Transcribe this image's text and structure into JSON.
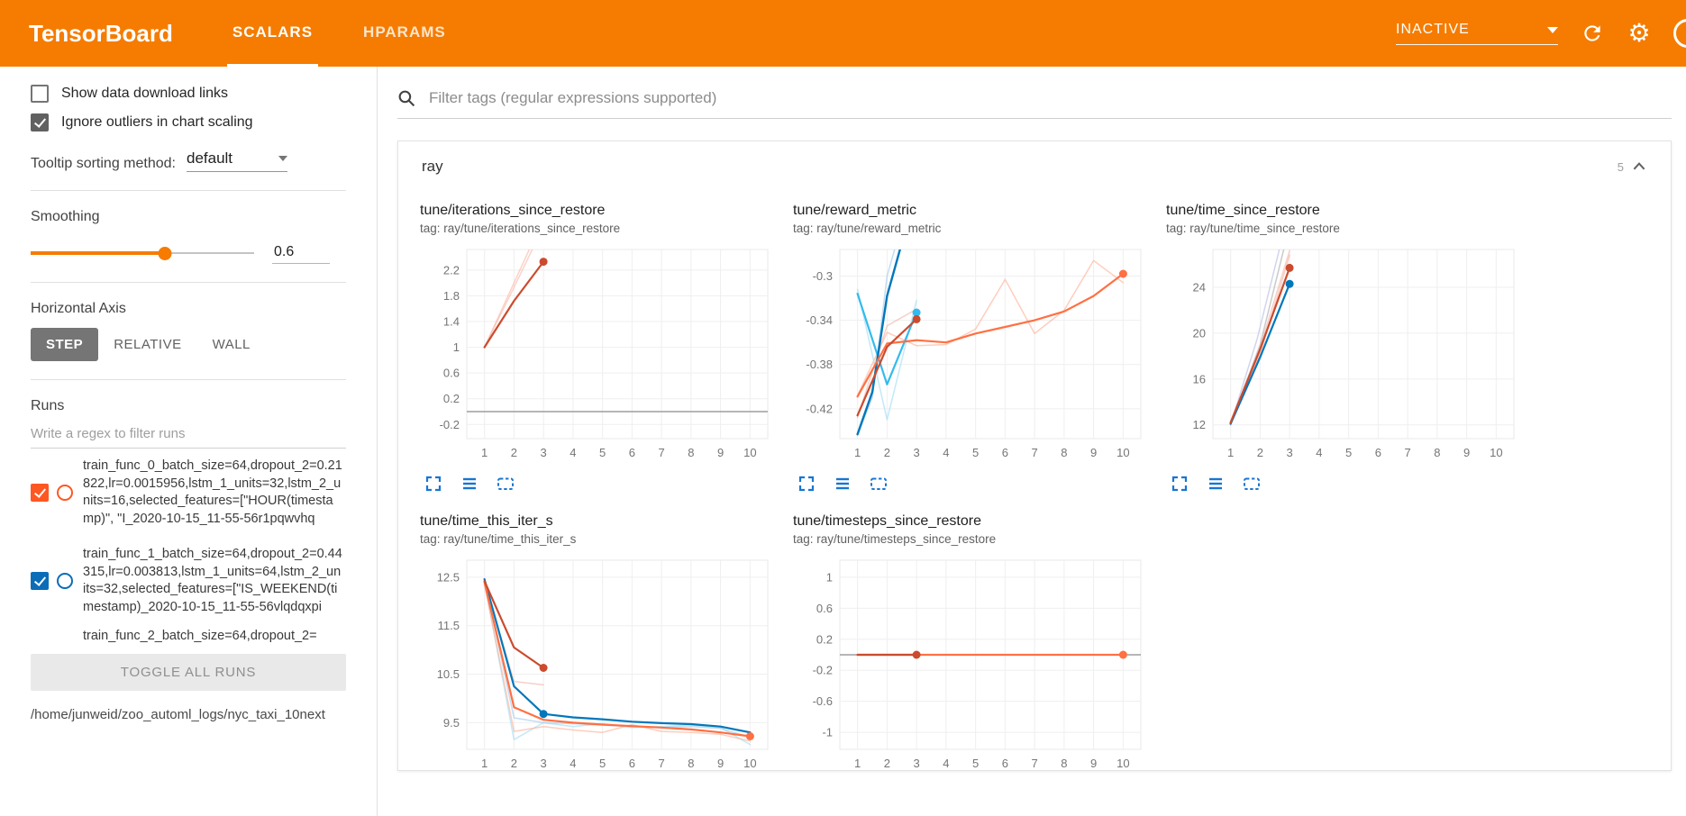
{
  "header": {
    "logo": "TensorBoard",
    "tabs": [
      {
        "label": "SCALARS"
      },
      {
        "label": "HPARAMS"
      }
    ],
    "status_dropdown": "INACTIVE"
  },
  "sidebar": {
    "show_download": {
      "label": "Show data download links",
      "checked": false
    },
    "ignore_outliers": {
      "label": "Ignore outliers in chart scaling",
      "checked": true
    },
    "tooltip_label": "Tooltip sorting method:",
    "tooltip_value": "default",
    "smoothing_label": "Smoothing",
    "smoothing_value": "0.6",
    "haxis_label": "Horizontal Axis",
    "haxis_options": [
      "STEP",
      "RELATIVE",
      "WALL"
    ],
    "haxis_selected": "STEP",
    "runs_label": "Runs",
    "runs_filter_placeholder": "Write a regex to filter runs",
    "runs": [
      {
        "label": "train_func_0_batch_size=64,dropout_2=0.21822,lr=0.0015956,lstm_1_units=32,lstm_2_units=16,selected_features=[\"HOUR(timestamp)\", \"I_2020-10-15_11-55-56r1pqwvhq",
        "color": "#ff5722",
        "checked": true
      },
      {
        "label": "train_func_1_batch_size=64,dropout_2=0.44315,lr=0.003813,lstm_1_units=64,lstm_2_units=32,selected_features=[\"IS_WEEKEND(timestamp)_2020-10-15_11-55-56vlqdqxpi",
        "color": "#0b6db8",
        "checked": true
      },
      {
        "label": "train_func_2_batch_size=64,dropout_2=",
        "color": "#33bbee",
        "checked": true
      }
    ],
    "toggle_all_label": "TOGGLE ALL RUNS",
    "log_path": "/home/junweid/zoo_automl_logs/nyc_taxi_10next"
  },
  "main": {
    "filter_placeholder": "Filter tags (regular expressions supported)",
    "group": {
      "name": "ray",
      "count": "5"
    }
  },
  "chart_data": [
    {
      "type": "line",
      "title": "tune/iterations_since_restore",
      "tag": "tag: ray/tune/iterations_since_restore",
      "xlim": [
        0.4,
        10.6
      ],
      "ylim": [
        -0.42,
        2.52
      ],
      "xticks": [
        1,
        2,
        3,
        4,
        5,
        6,
        7,
        8,
        9,
        10
      ],
      "yticks": [
        -0.2,
        0.2,
        0.6,
        1,
        1.4,
        1.8,
        2.2
      ],
      "zero_line": true,
      "series": [
        {
          "color": "#ffab91",
          "width": 1.5,
          "opacity": 0.55,
          "points": [
            [
              1,
              1
            ],
            [
              2,
              2
            ],
            [
              3,
              3
            ]
          ]
        },
        {
          "color": "#f4b8ab",
          "width": 1.5,
          "opacity": 0.6,
          "points": [
            [
              1,
              1
            ],
            [
              2,
              1.93
            ],
            [
              3,
              2.88
            ]
          ]
        },
        {
          "color": "#cb4b2e",
          "width": 2.2,
          "opacity": 1,
          "points": [
            [
              1,
              1
            ],
            [
              2,
              1.72
            ],
            [
              3,
              2.33
            ]
          ],
          "marker": true
        }
      ]
    },
    {
      "type": "line",
      "title": "tune/reward_metric",
      "tag": "tag: ray/tune/reward_metric",
      "xlim": [
        0.4,
        10.6
      ],
      "ylim": [
        -0.447,
        -0.276
      ],
      "xticks": [
        1,
        2,
        3,
        4,
        5,
        6,
        7,
        8,
        9,
        10
      ],
      "yticks": [
        -0.3,
        -0.34,
        -0.38,
        -0.42
      ],
      "zero_line": false,
      "series": [
        {
          "color": "#ffab91",
          "width": 1.5,
          "opacity": 0.6,
          "points": [
            [
              1,
              -0.408
            ],
            [
              2,
              -0.351
            ],
            [
              3,
              -0.363
            ],
            [
              4,
              -0.362
            ],
            [
              5,
              -0.348
            ],
            [
              6,
              -0.303
            ],
            [
              7,
              -0.352
            ],
            [
              8,
              -0.331
            ],
            [
              9,
              -0.286
            ],
            [
              10,
              -0.306
            ]
          ]
        },
        {
          "color": "#a8dff5",
          "width": 1.5,
          "opacity": 0.7,
          "points": [
            [
              1,
              -0.312
            ],
            [
              2,
              -0.43
            ],
            [
              3,
              -0.322
            ]
          ]
        },
        {
          "color": "#9dc6e8",
          "width": 1.5,
          "opacity": 0.6,
          "points": [
            [
              1,
              -0.444
            ],
            [
              1.5,
              -0.41
            ],
            [
              2,
              -0.3
            ],
            [
              2.3,
              -0.272
            ]
          ]
        },
        {
          "color": "#eeb2a5",
          "width": 1.5,
          "opacity": 0.6,
          "points": [
            [
              1,
              -0.428
            ],
            [
              2,
              -0.345
            ],
            [
              3,
              -0.33
            ]
          ]
        },
        {
          "color": "#33bbee",
          "width": 2.2,
          "opacity": 1,
          "points": [
            [
              1,
              -0.316
            ],
            [
              2,
              -0.398
            ],
            [
              3,
              -0.333
            ]
          ],
          "marker": true
        },
        {
          "color": "#0077bb",
          "width": 2.4,
          "opacity": 1,
          "points": [
            [
              1,
              -0.443
            ],
            [
              1.5,
              -0.405
            ],
            [
              2,
              -0.318
            ],
            [
              2.5,
              -0.27
            ]
          ]
        },
        {
          "color": "#ff7043",
          "width": 2.2,
          "opacity": 1,
          "points": [
            [
              1,
              -0.409
            ],
            [
              2,
              -0.361
            ],
            [
              3,
              -0.358
            ],
            [
              4,
              -0.36
            ],
            [
              5,
              -0.352
            ],
            [
              6,
              -0.346
            ],
            [
              7,
              -0.34
            ],
            [
              8,
              -0.332
            ],
            [
              9,
              -0.318
            ],
            [
              10,
              -0.298
            ]
          ],
          "marker": true
        },
        {
          "color": "#cb4b2e",
          "width": 2.2,
          "opacity": 1,
          "points": [
            [
              1,
              -0.426
            ],
            [
              2,
              -0.364
            ],
            [
              3,
              -0.339
            ]
          ],
          "marker": true
        }
      ]
    },
    {
      "type": "line",
      "title": "tune/time_since_restore",
      "tag": "tag: ray/tune/time_since_restore",
      "xlim": [
        0.4,
        10.6
      ],
      "ylim": [
        10.8,
        27.3
      ],
      "xticks": [
        1,
        2,
        3,
        4,
        5,
        6,
        7,
        8,
        9,
        10
      ],
      "yticks": [
        12,
        16,
        20,
        24
      ],
      "zero_line": false,
      "series": [
        {
          "color": "#c5cae9",
          "width": 1.5,
          "opacity": 0.8,
          "points": [
            [
              1,
              12
            ],
            [
              1.9,
              19.5
            ],
            [
              2.7,
              27.8
            ]
          ]
        },
        {
          "color": "#bdbdbd",
          "width": 1.5,
          "opacity": 0.8,
          "points": [
            [
              1,
              12
            ],
            [
              2,
              19
            ],
            [
              2.85,
              27.8
            ]
          ]
        },
        {
          "color": "#ffab91",
          "width": 1.5,
          "opacity": 0.6,
          "points": [
            [
              1,
              12
            ],
            [
              2,
              18.2
            ],
            [
              3,
              26.8
            ]
          ]
        },
        {
          "color": "#eeb2a5",
          "width": 1.5,
          "opacity": 0.6,
          "points": [
            [
              1,
              12.1
            ],
            [
              2,
              18.8
            ],
            [
              3,
              27.2
            ]
          ]
        },
        {
          "color": "#0077bb",
          "width": 2.2,
          "opacity": 1,
          "points": [
            [
              1,
              12.1
            ],
            [
              2,
              17.9
            ],
            [
              3,
              24.3
            ]
          ],
          "marker": true
        },
        {
          "color": "#cb4b2e",
          "width": 2.2,
          "opacity": 1,
          "points": [
            [
              1,
              12.2
            ],
            [
              2,
              18.6
            ],
            [
              3,
              25.7
            ]
          ],
          "marker": true
        }
      ]
    },
    {
      "type": "line",
      "title": "tune/time_this_iter_s",
      "tag": "tag: ray/tune/time_this_iter_s",
      "xlim": [
        0.4,
        10.6
      ],
      "ylim": [
        8.95,
        12.85
      ],
      "xticks": [
        1,
        2,
        3,
        4,
        5,
        6,
        7,
        8,
        9,
        10
      ],
      "yticks": [
        9.5,
        10.5,
        11.5,
        12.5
      ],
      "zero_line": false,
      "series": [
        {
          "color": "#a8dff5",
          "width": 1.5,
          "opacity": 0.7,
          "points": [
            [
              1,
              12.4
            ],
            [
              2,
              9.15
            ],
            [
              3,
              9.5
            ],
            [
              4,
              9.42
            ],
            [
              5,
              9.48
            ],
            [
              6,
              9.4
            ],
            [
              7,
              9.42
            ],
            [
              8,
              9.45
            ],
            [
              9,
              9.4
            ],
            [
              10,
              9.05
            ]
          ]
        },
        {
          "color": "#ffab91",
          "width": 1.5,
          "opacity": 0.6,
          "points": [
            [
              1,
              12.35
            ],
            [
              2,
              9.32
            ],
            [
              3,
              9.42
            ],
            [
              4,
              9.35
            ],
            [
              5,
              9.3
            ],
            [
              6,
              9.46
            ],
            [
              7,
              9.32
            ],
            [
              8,
              9.3
            ],
            [
              9,
              9.26
            ],
            [
              10,
              9.12
            ]
          ]
        },
        {
          "color": "#eeb2a5",
          "width": 1.5,
          "opacity": 0.6,
          "points": [
            [
              1,
              12.42
            ],
            [
              2,
              10.35
            ],
            [
              3,
              10.28
            ]
          ]
        },
        {
          "color": "#9dc6e8",
          "width": 1.5,
          "opacity": 0.6,
          "points": [
            [
              1,
              12.45
            ],
            [
              2,
              9.6
            ],
            [
              3,
              9.5
            ],
            [
              4,
              9.48
            ],
            [
              5,
              9.45
            ],
            [
              6,
              9.42
            ],
            [
              7,
              9.4
            ],
            [
              8,
              9.42
            ],
            [
              9,
              9.38
            ],
            [
              10,
              9.2
            ]
          ]
        },
        {
          "color": "#0077bb",
          "width": 2.2,
          "opacity": 1,
          "points": [
            [
              3,
              9.68
            ],
            [
              4,
              9.61
            ],
            [
              5,
              9.57
            ],
            [
              6,
              9.52
            ],
            [
              7,
              9.49
            ],
            [
              8,
              9.47
            ],
            [
              9,
              9.42
            ],
            [
              10,
              9.3
            ]
          ]
        },
        {
          "color": "#0077bb",
          "width": 2.2,
          "opacity": 1,
          "points": [
            [
              1,
              12.46
            ],
            [
              2,
              10.25
            ],
            [
              3,
              9.68
            ]
          ],
          "marker": true
        },
        {
          "color": "#ff7043",
          "width": 2.2,
          "opacity": 1,
          "points": [
            [
              1,
              12.4
            ],
            [
              2,
              9.82
            ],
            [
              3,
              9.56
            ],
            [
              4,
              9.5
            ],
            [
              5,
              9.46
            ],
            [
              6,
              9.43
            ],
            [
              7,
              9.4
            ],
            [
              8,
              9.36
            ],
            [
              9,
              9.3
            ],
            [
              10,
              9.22
            ]
          ],
          "marker": true
        },
        {
          "color": "#cb4b2e",
          "width": 2.2,
          "opacity": 1,
          "points": [
            [
              1,
              12.42
            ],
            [
              2,
              11.05
            ],
            [
              3,
              10.63
            ]
          ],
          "marker": true
        }
      ]
    },
    {
      "type": "line",
      "title": "tune/timesteps_since_restore",
      "tag": "tag: ray/tune/timesteps_since_restore",
      "xlim": [
        0.4,
        10.6
      ],
      "ylim": [
        -1.22,
        1.22
      ],
      "xticks": [
        1,
        2,
        3,
        4,
        5,
        6,
        7,
        8,
        9,
        10
      ],
      "yticks": [
        -1,
        -0.6,
        -0.2,
        0.2,
        0.6,
        1
      ],
      "zero_line": true,
      "series": [
        {
          "color": "#ff7043",
          "width": 2.2,
          "opacity": 1,
          "points": [
            [
              1,
              0
            ],
            [
              10,
              0
            ]
          ],
          "marker": true
        },
        {
          "color": "#cb4b2e",
          "width": 2.2,
          "opacity": 1,
          "points": [
            [
              1,
              0
            ],
            [
              3,
              0
            ]
          ],
          "marker": true
        }
      ]
    }
  ]
}
